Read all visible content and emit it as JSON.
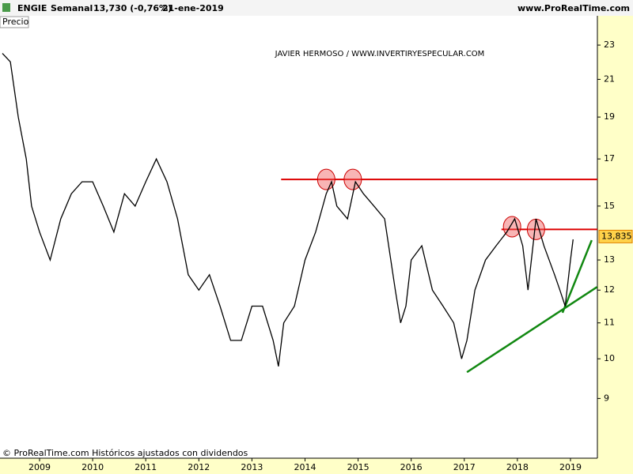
{
  "header": {
    "symbol": "ENGIE",
    "period": "Semanal",
    "quote": "13,730 (-0,76%)",
    "date": "21-ene-2019",
    "site": "www.ProRealTime.com"
  },
  "chart_data": {
    "type": "line",
    "annotation": "JAVIER HERMOSO / WWW.INVERTIRYESPECULAR.COM",
    "footer": "© ProRealTime.com  Históricos ajustados con dividendos",
    "log_scale": true,
    "x": [
      2008.3,
      2008.45,
      2008.6,
      2008.75,
      2008.85,
      2009.0,
      2009.2,
      2009.4,
      2009.6,
      2009.8,
      2010.0,
      2010.2,
      2010.4,
      2010.6,
      2010.8,
      2011.0,
      2011.2,
      2011.4,
      2011.6,
      2011.8,
      2012.0,
      2012.2,
      2012.4,
      2012.6,
      2012.8,
      2013.0,
      2013.2,
      2013.4,
      2013.5,
      2013.6,
      2013.8,
      2014.0,
      2014.2,
      2014.4,
      2014.5,
      2014.6,
      2014.8,
      2014.95,
      2015.1,
      2015.3,
      2015.5,
      2015.7,
      2015.8,
      2015.9,
      2016.0,
      2016.2,
      2016.4,
      2016.6,
      2016.8,
      2016.95,
      2017.05,
      2017.2,
      2017.4,
      2017.6,
      2017.8,
      2017.95,
      2018.1,
      2018.2,
      2018.35,
      2018.5,
      2018.7,
      2018.8,
      2018.9,
      2019.0,
      2019.05
    ],
    "series": [
      {
        "name": "Precio",
        "color": "#000000",
        "values": [
          22.5,
          22,
          19,
          17,
          15,
          14,
          13,
          14.5,
          15.5,
          16,
          16,
          15,
          14,
          15.5,
          15,
          16,
          17,
          16,
          14.5,
          12.5,
          12,
          12.5,
          11.5,
          10.5,
          10.5,
          11.5,
          11.5,
          10.5,
          9.8,
          11,
          11.5,
          13,
          14,
          15.5,
          16,
          15,
          14.5,
          16,
          15.5,
          15,
          14.5,
          12,
          11,
          11.5,
          13,
          13.5,
          12,
          11.5,
          11,
          10,
          10.5,
          12,
          13,
          13.5,
          14,
          14.5,
          13.5,
          12,
          14.5,
          13.5,
          12.5,
          12,
          11.5,
          13,
          13.73
        ]
      }
    ],
    "last_price": 13.835,
    "last_price_label": "13,835",
    "hlines": [
      {
        "y": 16.1,
        "x0": 2013.55,
        "color": "#dd0000"
      },
      {
        "y": 14.1,
        "x0": 2017.7,
        "color": "#dd0000"
      }
    ],
    "trendlines": [
      {
        "x": [
          2017.05,
          2019.5
        ],
        "y": [
          9.65,
          12.1
        ],
        "color": "#118811"
      },
      {
        "x": [
          2018.85,
          2019.4
        ],
        "y": [
          11.3,
          13.7
        ],
        "color": "#118811"
      }
    ],
    "circles": [
      {
        "x": 2014.4,
        "y": 16.1
      },
      {
        "x": 2014.9,
        "y": 16.1
      },
      {
        "x": 2017.9,
        "y": 14.2
      },
      {
        "x": 2018.35,
        "y": 14.1
      }
    ],
    "xlim": [
      2008.255,
      2019.507
    ],
    "xticks": [
      2009,
      2010,
      2011,
      2012,
      2013,
      2014,
      2015,
      2016,
      2017,
      2018,
      2019
    ],
    "ylim": [
      7.68,
      24.86
    ],
    "yticks": [
      9,
      10,
      11,
      12,
      13,
      15,
      17,
      19,
      21,
      23
    ]
  }
}
